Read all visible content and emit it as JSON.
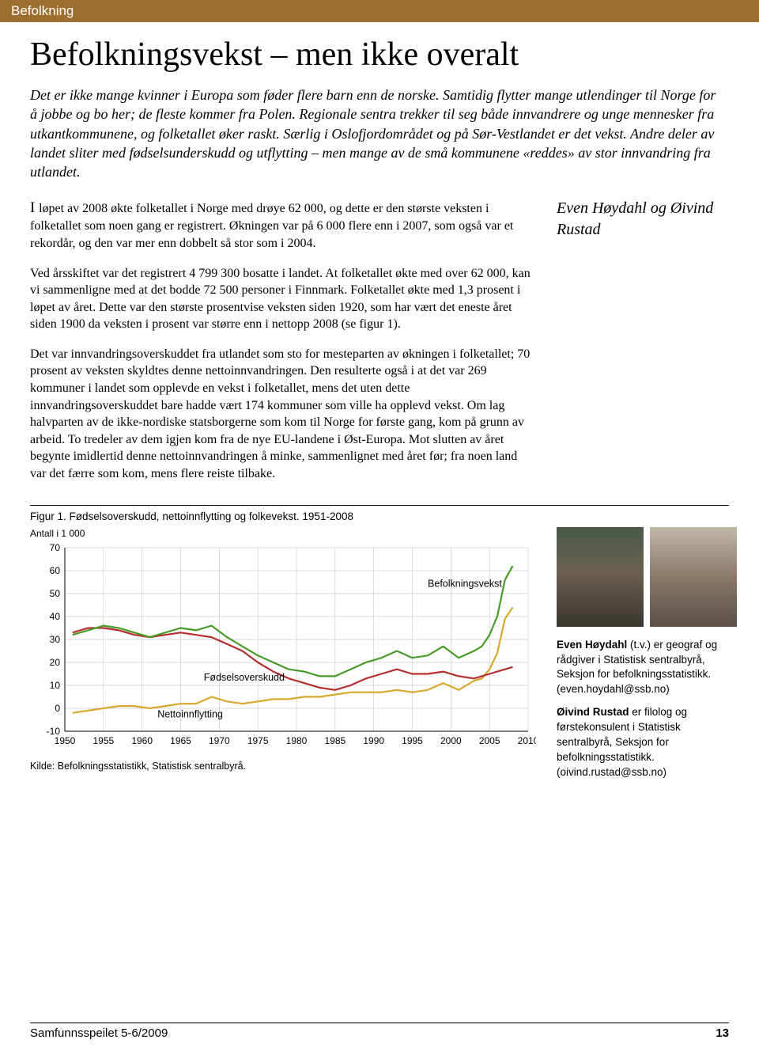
{
  "header": {
    "section": "Befolkning"
  },
  "article": {
    "headline": "Befolkningsvekst – men ikke overalt",
    "intro": "Det er ikke mange kvinner i Europa som føder flere barn enn de norske. Samtidig flytter mange utlendinger til Norge for å jobbe og bo her; de fleste kommer fra Polen. Regionale sentra trekker til seg både innvandrere og unge mennesker fra utkantkommunene, og folketallet øker raskt. Særlig i Oslofjordområdet og på Sør-Vestlandet er det vekst. Andre deler av landet sliter med fødselsunderskudd og utflytting – men mange av de små kommunene «reddes» av stor innvandring fra utlandet.",
    "p1": "løpet av 2008 økte folketallet i Norge med drøye 62 000, og dette er den største veksten i folketallet som noen gang er registrert. Økningen var på 6 000 flere enn i 2007, som også var et rekordår, og den var mer enn dobbelt så stor som i 2004.",
    "p1_dropcap": "I ",
    "p2": "Ved årsskiftet var det registrert 4 799 300 bosatte i landet. At folketallet økte med over 62 000, kan vi sammenligne med at det bodde 72 500 personer i Finnmark. Folketallet økte med 1,3 prosent i løpet av året. Dette var den største prosentvise veksten siden 1920, som har vært det eneste året siden 1900 da veksten i prosent var større enn i nettopp 2008 (se figur 1).",
    "p3": "Det var innvandringsoverskuddet fra utlandet som sto for mesteparten av økningen i folketallet; 70 prosent av veksten skyldtes denne nettoinnvandringen. Den resulterte også i at det var 269 kommuner i landet som opplevde en vekst i folketallet, mens det uten dette innvandringsoverskuddet bare hadde vært 174 kommuner som ville ha opplevd vekst. Om lag halvparten av de ikke-nordiske statsborgerne som kom til Norge for første gang, kom på grunn av arbeid. To tredeler av dem igjen kom fra de nye EU-landene i Øst-Europa. Mot slutten av året begynte imidlertid denne nettoinnvandringen å minke, sammenlignet med året før; fra noen land var det færre som kom, mens flere reiste tilbake.",
    "authors": "Even Høydahl og Øivind Rustad"
  },
  "figure": {
    "caption": "Figur 1. Fødselsoverskudd, nettoinnflytting og folkevekst. 1951-2008",
    "yaxis_label": "Antall i 1 000",
    "source": "Kilde: Befolkningsstatistikk, Statistisk sentralbyrå.",
    "label_befolkning": "Befolkningsvekst",
    "label_fodsel": "Fødselsoverskudd",
    "label_netto": "Nettoinnflytting",
    "ylim": [
      -10,
      70
    ],
    "ytick_step": 10,
    "xlim": [
      1950,
      2010
    ],
    "xtick_step": 5,
    "xticks": [
      1950,
      1955,
      1960,
      1965,
      1970,
      1975,
      1980,
      1985,
      1990,
      1995,
      2000,
      2005,
      2010
    ],
    "yticks": [
      -10,
      0,
      10,
      20,
      30,
      40,
      50,
      60,
      70
    ],
    "colors": {
      "befolkningsvekst": "#4a9a2a",
      "fodselsoverskudd": "#b62e30",
      "nettoinnflytting": "#d9a82e",
      "grid": "#cccccc",
      "background": "#ffffff"
    },
    "line_width": 2.2,
    "series": {
      "befolkningsvekst": [
        [
          1951,
          32
        ],
        [
          1953,
          34
        ],
        [
          1955,
          36
        ],
        [
          1957,
          35
        ],
        [
          1959,
          33
        ],
        [
          1961,
          31
        ],
        [
          1963,
          33
        ],
        [
          1965,
          35
        ],
        [
          1967,
          34
        ],
        [
          1969,
          36
        ],
        [
          1971,
          31
        ],
        [
          1973,
          27
        ],
        [
          1975,
          23
        ],
        [
          1977,
          20
        ],
        [
          1979,
          17
        ],
        [
          1981,
          16
        ],
        [
          1983,
          14
        ],
        [
          1985,
          14
        ],
        [
          1987,
          17
        ],
        [
          1989,
          20
        ],
        [
          1991,
          22
        ],
        [
          1993,
          25
        ],
        [
          1995,
          22
        ],
        [
          1997,
          23
        ],
        [
          1999,
          27
        ],
        [
          2001,
          22
        ],
        [
          2003,
          25
        ],
        [
          2004,
          27
        ],
        [
          2005,
          32
        ],
        [
          2006,
          40
        ],
        [
          2007,
          56
        ],
        [
          2008,
          62
        ]
      ],
      "fodselsoverskudd": [
        [
          1951,
          33
        ],
        [
          1953,
          35
        ],
        [
          1955,
          35
        ],
        [
          1957,
          34
        ],
        [
          1959,
          32
        ],
        [
          1961,
          31
        ],
        [
          1963,
          32
        ],
        [
          1965,
          33
        ],
        [
          1967,
          32
        ],
        [
          1969,
          31
        ],
        [
          1971,
          28
        ],
        [
          1973,
          25
        ],
        [
          1975,
          20
        ],
        [
          1977,
          16
        ],
        [
          1979,
          13
        ],
        [
          1981,
          11
        ],
        [
          1983,
          9
        ],
        [
          1985,
          8
        ],
        [
          1987,
          10
        ],
        [
          1989,
          13
        ],
        [
          1991,
          15
        ],
        [
          1993,
          17
        ],
        [
          1995,
          15
        ],
        [
          1997,
          15
        ],
        [
          1999,
          16
        ],
        [
          2001,
          14
        ],
        [
          2003,
          13
        ],
        [
          2004,
          14
        ],
        [
          2005,
          15
        ],
        [
          2006,
          16
        ],
        [
          2007,
          17
        ],
        [
          2008,
          18
        ]
      ],
      "nettoinnflytting": [
        [
          1951,
          -2
        ],
        [
          1953,
          -1
        ],
        [
          1955,
          0
        ],
        [
          1957,
          1
        ],
        [
          1959,
          1
        ],
        [
          1961,
          0
        ],
        [
          1963,
          1
        ],
        [
          1965,
          2
        ],
        [
          1967,
          2
        ],
        [
          1969,
          5
        ],
        [
          1971,
          3
        ],
        [
          1973,
          2
        ],
        [
          1975,
          3
        ],
        [
          1977,
          4
        ],
        [
          1979,
          4
        ],
        [
          1981,
          5
        ],
        [
          1983,
          5
        ],
        [
          1985,
          6
        ],
        [
          1987,
          7
        ],
        [
          1989,
          7
        ],
        [
          1991,
          7
        ],
        [
          1993,
          8
        ],
        [
          1995,
          7
        ],
        [
          1997,
          8
        ],
        [
          1999,
          11
        ],
        [
          2001,
          8
        ],
        [
          2003,
          12
        ],
        [
          2004,
          13
        ],
        [
          2005,
          17
        ],
        [
          2006,
          24
        ],
        [
          2007,
          39
        ],
        [
          2008,
          44
        ]
      ]
    }
  },
  "bios": {
    "b1_name": "Even Høydahl",
    "b1_text": " (t.v.) er geograf og rådgiver i Statistisk sentralbyrå, Seksjon for befolkningsstatistikk. (even.hoydahl@ssb.no)",
    "b2_name": "Øivind Rustad",
    "b2_text": " er filolog og førstekonsulent i Statistisk sentralbyrå, Seksjon for befolkningsstatistikk. (oivind.rustad@ssb.no)"
  },
  "footer": {
    "publication": "Samfunnsspeilet 5-6/2009",
    "page": "13"
  }
}
